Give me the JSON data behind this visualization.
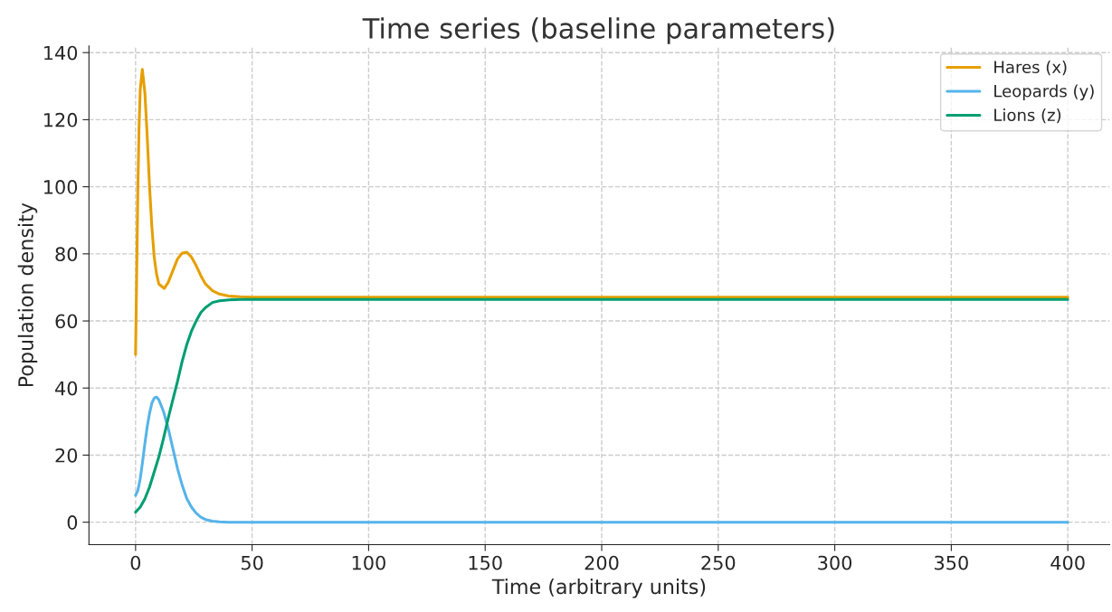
{
  "chart_data": {
    "type": "line",
    "title": "Time series (baseline parameters)",
    "xlabel": "Time (arbitrary units)",
    "ylabel": "Population density",
    "xlim": [
      -20,
      418
    ],
    "xticks": [
      0,
      50,
      100,
      150,
      200,
      250,
      300,
      350,
      400
    ],
    "ylim": [
      -6.7,
      142
    ],
    "yticks": [
      0,
      20,
      40,
      60,
      80,
      100,
      120,
      140
    ],
    "grid": true,
    "legend": "top right",
    "line_style": "solid",
    "series": [
      {
        "name": "Hares (x)",
        "color": "#e69f00",
        "x": [
          0,
          0.5,
          1,
          1.5,
          2,
          2.9,
          4,
          5,
          6,
          7,
          8,
          9,
          10,
          12.3,
          14,
          16,
          18,
          20,
          22,
          24,
          26,
          28,
          30,
          33,
          36,
          40,
          45,
          50,
          400
        ],
        "values": [
          50,
          75,
          100,
          118,
          129,
          135,
          128,
          115,
          100,
          88,
          79,
          74,
          71,
          69.7,
          71.5,
          75,
          78.5,
          80.2,
          80.5,
          79,
          76.5,
          73.5,
          71,
          69,
          68,
          67.4,
          67.2,
          67.1,
          67.1
        ]
      },
      {
        "name": "Leopards (y)",
        "color": "#56b4e9",
        "x": [
          0,
          1,
          2,
          3,
          4,
          5,
          6,
          7,
          8,
          9,
          10,
          12,
          14,
          16,
          18,
          20,
          22,
          24,
          26,
          28,
          30,
          33,
          36,
          40,
          400
        ],
        "values": [
          8,
          9.5,
          13,
          18,
          23.5,
          28.5,
          32.5,
          35.5,
          37,
          37.3,
          36.5,
          33,
          28,
          22,
          16,
          11,
          7,
          4.5,
          2.7,
          1.5,
          0.8,
          0.3,
          0.1,
          0,
          0
        ]
      },
      {
        "name": "Lions (z)",
        "color": "#009e73",
        "x": [
          0,
          2,
          4,
          6,
          8,
          10,
          12,
          14,
          16,
          18,
          20,
          22,
          24,
          26,
          28,
          30,
          33,
          36,
          40,
          45,
          400
        ],
        "values": [
          3,
          4.5,
          7,
          10.5,
          15,
          19.5,
          25,
          31,
          36.5,
          42,
          48,
          53,
          57,
          60,
          62.5,
          64,
          65.5,
          66,
          66.3,
          66.4,
          66.4
        ]
      }
    ]
  }
}
